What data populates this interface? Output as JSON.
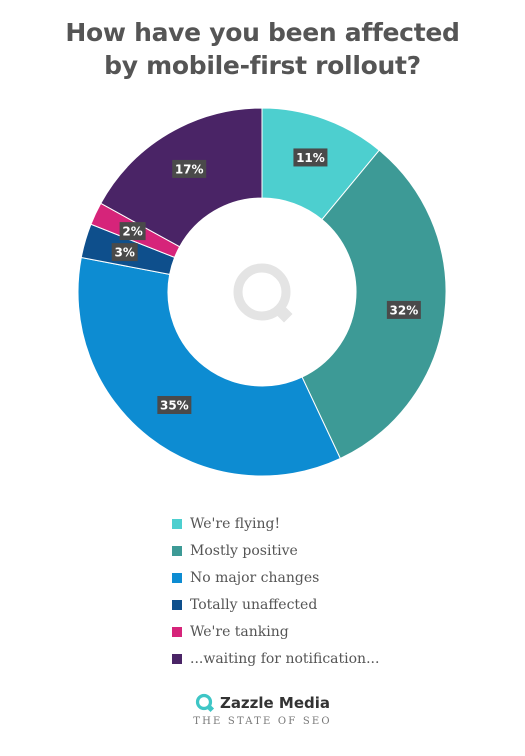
{
  "title": {
    "line1": "How have you been affected",
    "line2": "by mobile-first rollout?"
  },
  "chart_data": {
    "type": "pie",
    "donut": true,
    "categories": [
      "We're flying!",
      "Mostly positive",
      "No major changes",
      "Totally unaffected",
      "We're tanking",
      "...waiting for notification..."
    ],
    "values": [
      11,
      32,
      35,
      3,
      2,
      17
    ],
    "labels": [
      "11%",
      "32%",
      "35%",
      "3%",
      "2%",
      "17%"
    ],
    "colors": [
      "#4dcfcf",
      "#3d9a96",
      "#0d8cd2",
      "#0e4f8c",
      "#d6247a",
      "#4a2466"
    ],
    "legend_position": "bottom",
    "center_icon": "zazzle-q-logo-icon"
  },
  "legend": {
    "items": [
      {
        "label": "We're flying!",
        "color": "#4dcfcf"
      },
      {
        "label": "Mostly positive",
        "color": "#3d9a96"
      },
      {
        "label": "No major changes",
        "color": "#0d8cd2"
      },
      {
        "label": "Totally unaffected",
        "color": "#0e4f8c"
      },
      {
        "label": "We're tanking",
        "color": "#d6247a"
      },
      {
        "label": "...waiting for notification...",
        "color": "#4a2466"
      }
    ]
  },
  "brand": {
    "name": "Zazzle Media",
    "tagline": "THE STATE OF SEO",
    "logo_icon": "zazzle-q-logo-icon",
    "accent": "#3ec6c6"
  }
}
